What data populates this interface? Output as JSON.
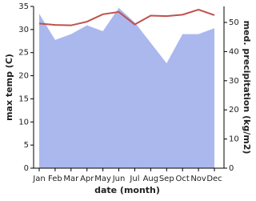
{
  "chart_data": {
    "type": "area-line",
    "x_label": "date (month)",
    "y_label": "max temp (C)",
    "y2_label": "med. precipitation (kg/m2)",
    "categories": [
      "Jan",
      "Feb",
      "Mar",
      "Apr",
      "May",
      "Jun",
      "Jul",
      "Aug",
      "Sep",
      "Oct",
      "Nov",
      "Dec"
    ],
    "series": [
      {
        "name": "med. precipitation",
        "kind": "area",
        "axis": "y2",
        "color": "#aab8ee",
        "values": [
          53,
          44,
          46,
          49,
          47,
          55,
          50,
          43,
          36,
          46,
          46,
          48
        ]
      },
      {
        "name": "max temp",
        "kind": "line",
        "color": "#c0504d",
        "values": [
          31.3,
          31.0,
          30.9,
          31.7,
          33.3,
          33.8,
          31.1,
          33.0,
          32.9,
          33.2,
          34.3,
          33.1
        ]
      }
    ],
    "ylim": [
      0,
      35
    ],
    "yticks": [
      0,
      5,
      10,
      15,
      20,
      25,
      30,
      35
    ],
    "y2lim": [
      0,
      55.5
    ],
    "y2ticks": [
      0,
      10,
      20,
      30,
      40,
      50
    ]
  }
}
